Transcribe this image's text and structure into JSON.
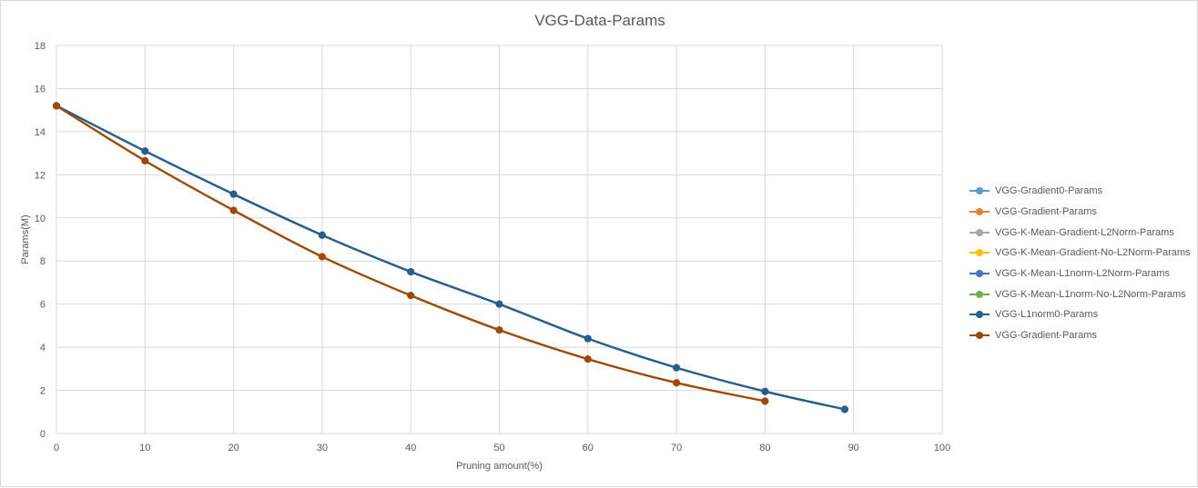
{
  "chart_data": {
    "type": "line",
    "title": "VGG-Data-Params",
    "xlabel": "Pruning amount(%)",
    "ylabel": "Params(M)",
    "xlim": [
      0,
      100
    ],
    "ylim": [
      0,
      18
    ],
    "xticks": [
      0,
      10,
      20,
      30,
      40,
      50,
      60,
      70,
      80,
      90,
      100
    ],
    "yticks": [
      0,
      2,
      4,
      6,
      8,
      10,
      12,
      14,
      16,
      18
    ],
    "grid": true,
    "legend_position": "right",
    "series": [
      {
        "name": "VGG-Gradient0-Params",
        "color": "#5b9bd5",
        "x": [
          0,
          10,
          20,
          30,
          40,
          50,
          60,
          70,
          80,
          89
        ],
        "y": [
          15.2,
          13.1,
          11.1,
          9.2,
          7.5,
          6.0,
          4.4,
          3.05,
          1.95,
          1.12
        ]
      },
      {
        "name": "VGG-Gradient-Params",
        "color": "#ed7d31",
        "x": [
          0,
          10,
          20,
          30,
          40,
          50,
          60,
          70,
          80
        ],
        "y": [
          15.2,
          12.65,
          10.35,
          8.2,
          6.4,
          4.8,
          3.45,
          2.35,
          1.5
        ]
      },
      {
        "name": "VGG-K-Mean-Gradient-L2Norm-Params",
        "color": "#a5a5a5",
        "x": [
          0,
          10,
          20,
          30,
          40,
          50,
          60,
          70,
          80
        ],
        "y": [
          15.2,
          12.65,
          10.35,
          8.2,
          6.4,
          4.8,
          3.45,
          2.35,
          1.5
        ]
      },
      {
        "name": "VGG-K-Mean-Gradient-No-L2Norm-Params",
        "color": "#ffc000",
        "x": [
          0,
          10,
          20,
          30,
          40,
          50,
          60,
          70,
          80
        ],
        "y": [
          15.2,
          12.65,
          10.35,
          8.2,
          6.4,
          4.8,
          3.45,
          2.35,
          1.5
        ]
      },
      {
        "name": "VGG-K-Mean-L1norm-L2Norm-Params",
        "color": "#4472c4",
        "x": [
          0,
          10,
          20,
          30,
          40,
          50,
          60,
          70,
          80,
          89
        ],
        "y": [
          15.2,
          13.1,
          11.1,
          9.2,
          7.5,
          6.0,
          4.4,
          3.05,
          1.95,
          1.12
        ]
      },
      {
        "name": "VGG-K-Mean-L1norm-No-L2Norm-Params",
        "color": "#70ad47",
        "x": [
          0,
          10,
          20,
          30,
          40,
          50,
          60,
          70,
          80,
          89
        ],
        "y": [
          15.2,
          13.1,
          11.1,
          9.2,
          7.5,
          6.0,
          4.4,
          3.05,
          1.95,
          1.12
        ]
      },
      {
        "name": "VGG-L1norm0-Params",
        "color": "#255e91",
        "x": [
          0,
          10,
          20,
          30,
          40,
          50,
          60,
          70,
          80,
          89
        ],
        "y": [
          15.2,
          13.1,
          11.1,
          9.2,
          7.5,
          6.0,
          4.4,
          3.05,
          1.95,
          1.12
        ]
      },
      {
        "name": "VGG-Gradient-Params",
        "color": "#9e480e",
        "x": [
          0,
          10,
          20,
          30,
          40,
          50,
          60,
          70,
          80
        ],
        "y": [
          15.2,
          12.65,
          10.35,
          8.2,
          6.4,
          4.8,
          3.45,
          2.35,
          1.5
        ]
      }
    ]
  }
}
